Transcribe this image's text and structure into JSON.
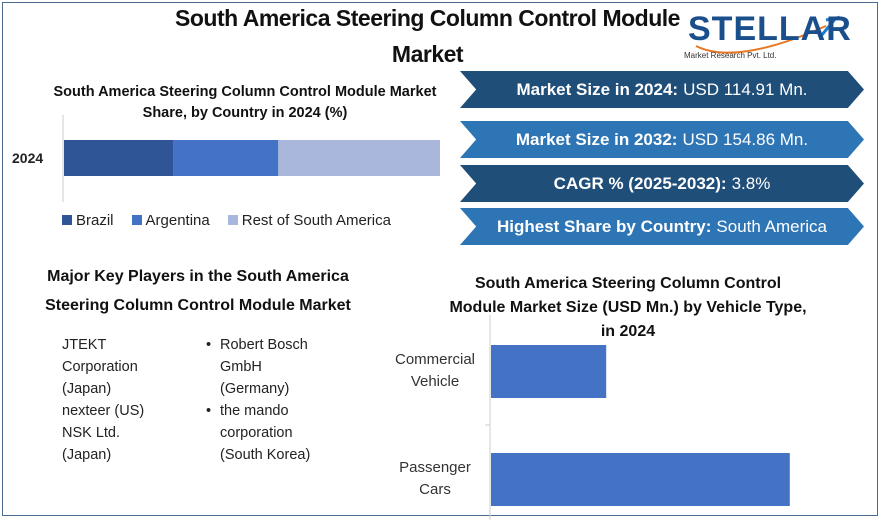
{
  "title": "South America Steering Column Control Module Market",
  "logo": {
    "name": "STELLAR",
    "tagline": "Market Research Pvt. Ltd."
  },
  "stats": [
    {
      "label": "Market Size in 2024:",
      "value": "USD 114.91 Mn."
    },
    {
      "label": "Market Size in 2032:",
      "value": "USD 154.86 Mn."
    },
    {
      "label": "CAGR % (2025-2032):",
      "value": "3.8%"
    },
    {
      "label": "Highest Share by Country:",
      "value": "South America"
    }
  ],
  "players": {
    "title": "Major Key Players in the South America Steering Column Control Module Market",
    "col1": [
      "JTEKT Corporation (Japan)",
      "nexteer (US)",
      "NSK Ltd. (Japan)"
    ],
    "col2": [
      "Robert Bosch GmbH (Germany)",
      "the mando corporation (South Korea)"
    ]
  },
  "chart_data": [
    {
      "type": "bar",
      "stacked": true,
      "orientation": "horizontal",
      "title": "South America Steering Column Control Module Market Share, by Country in 2024 (%)",
      "categories": [
        "2024"
      ],
      "series": [
        {
          "name": "Brazil",
          "values": [
            29
          ],
          "color": "#2f5597"
        },
        {
          "name": "Argentina",
          "values": [
            28
          ],
          "color": "#4472c4"
        },
        {
          "name": "Rest of South America",
          "values": [
            43
          ],
          "color": "#a9b7dc"
        }
      ],
      "xlim": [
        0,
        100
      ],
      "legend": "bottom"
    },
    {
      "type": "bar",
      "orientation": "horizontal",
      "title": "South America Steering Column Control Module Market Size (USD Mn.) by Vehicle Type, in 2024",
      "categories": [
        "Commercial Vehicle",
        "Passenger Cars"
      ],
      "values": [
        32,
        83
      ],
      "color": "#4472c4",
      "xlim": [
        0,
        100
      ]
    }
  ]
}
